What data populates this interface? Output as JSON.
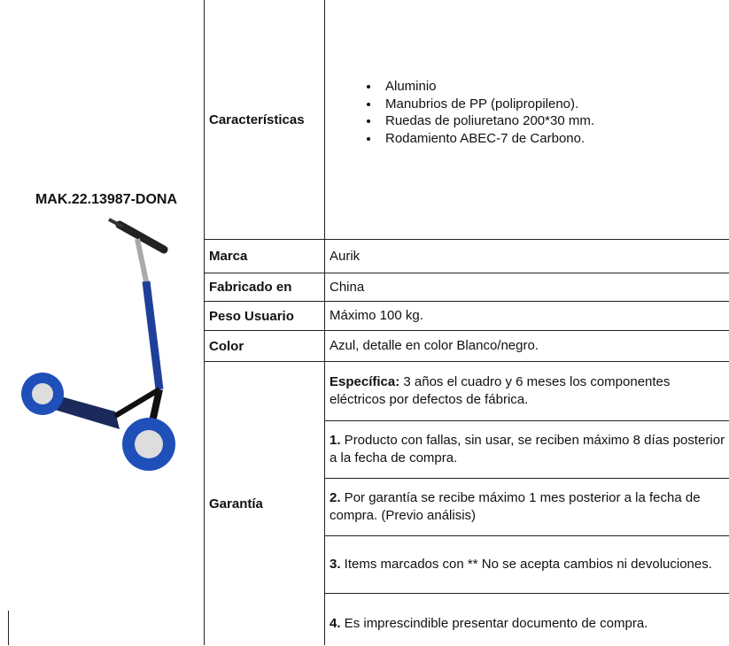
{
  "product_code": "MAK.22.13987-DONA",
  "features": {
    "label": "Características",
    "items": [
      "Aluminio",
      "Manubrios de PP (polipropileno).",
      "Ruedas de poliuretano 200*30 mm.",
      "Rodamiento ABEC-7 de Carbono."
    ]
  },
  "rows": [
    {
      "label": "Marca",
      "value": "Aurik"
    },
    {
      "label": "Fabricado en",
      "value": "China"
    },
    {
      "label": "Peso Usuario",
      "value": "Máximo 100 kg."
    },
    {
      "label": "Color",
      "value": "Azul, detalle en color Blanco/negro."
    }
  ],
  "warranty": {
    "label": "Garantía",
    "items": [
      {
        "lead": "Específica:",
        "text": " 3 años el cuadro y 6 meses los componentes eléctricos por defectos de fábrica."
      },
      {
        "lead": "1.",
        "text": " Producto con fallas, sin usar, se reciben máximo 8 días posterior a la fecha de compra."
      },
      {
        "lead": "2.",
        "text": " Por garantía se recibe máximo 1 mes posterior a la fecha de compra. (Previo análisis)"
      },
      {
        "lead": "3.",
        "text": " Items marcados con ** No se acepta cambios ni devoluciones."
      },
      {
        "lead": "4.",
        "text": " Es imprescindible presentar documento de compra."
      }
    ]
  }
}
